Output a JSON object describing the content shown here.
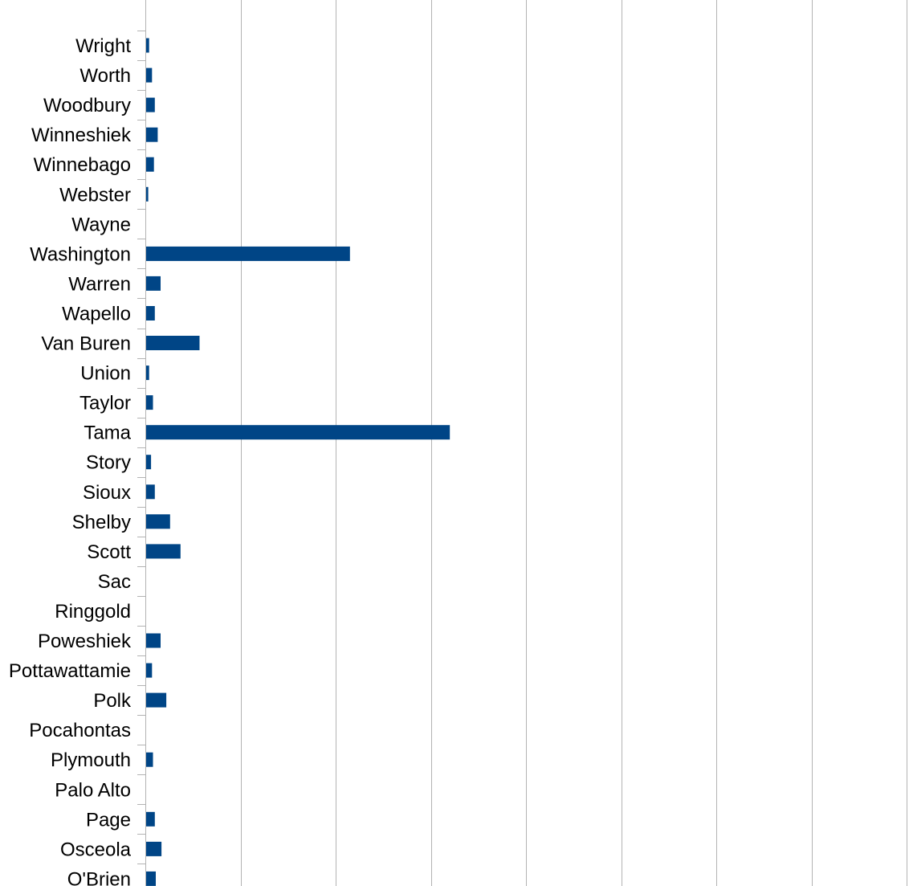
{
  "chart_data": {
    "type": "bar",
    "orientation": "horizontal",
    "categories": [
      "Wright",
      "Worth",
      "Woodbury",
      "Winneshiek",
      "Winnebago",
      "Webster",
      "Wayne",
      "Washington",
      "Warren",
      "Wapello",
      "Van Buren",
      "Union",
      "Taylor",
      "Tama",
      "Story",
      "Sioux",
      "Shelby",
      "Scott",
      "Sac",
      "Ringgold",
      "Poweshiek",
      "Pottawattamie",
      "Polk",
      "Pocahontas",
      "Plymouth",
      "Palo Alto",
      "Page",
      "Osceola",
      "O'Brien"
    ],
    "series": [
      {
        "values": [
          0.4,
          0.7,
          1.0,
          1.3,
          0.9,
          0.3,
          0,
          21.5,
          1.6,
          1.0,
          5.7,
          0.4,
          0.8,
          32.0,
          0.6,
          1.0,
          2.6,
          3.7,
          0,
          0,
          1.6,
          0.7,
          2.2,
          0,
          0.8,
          0,
          1.0,
          1.7,
          1.1
        ]
      }
    ],
    "xlim": [
      0,
      80
    ],
    "grid": true,
    "bar_color": "#004586",
    "gridline_color": "#b3b3b3"
  }
}
